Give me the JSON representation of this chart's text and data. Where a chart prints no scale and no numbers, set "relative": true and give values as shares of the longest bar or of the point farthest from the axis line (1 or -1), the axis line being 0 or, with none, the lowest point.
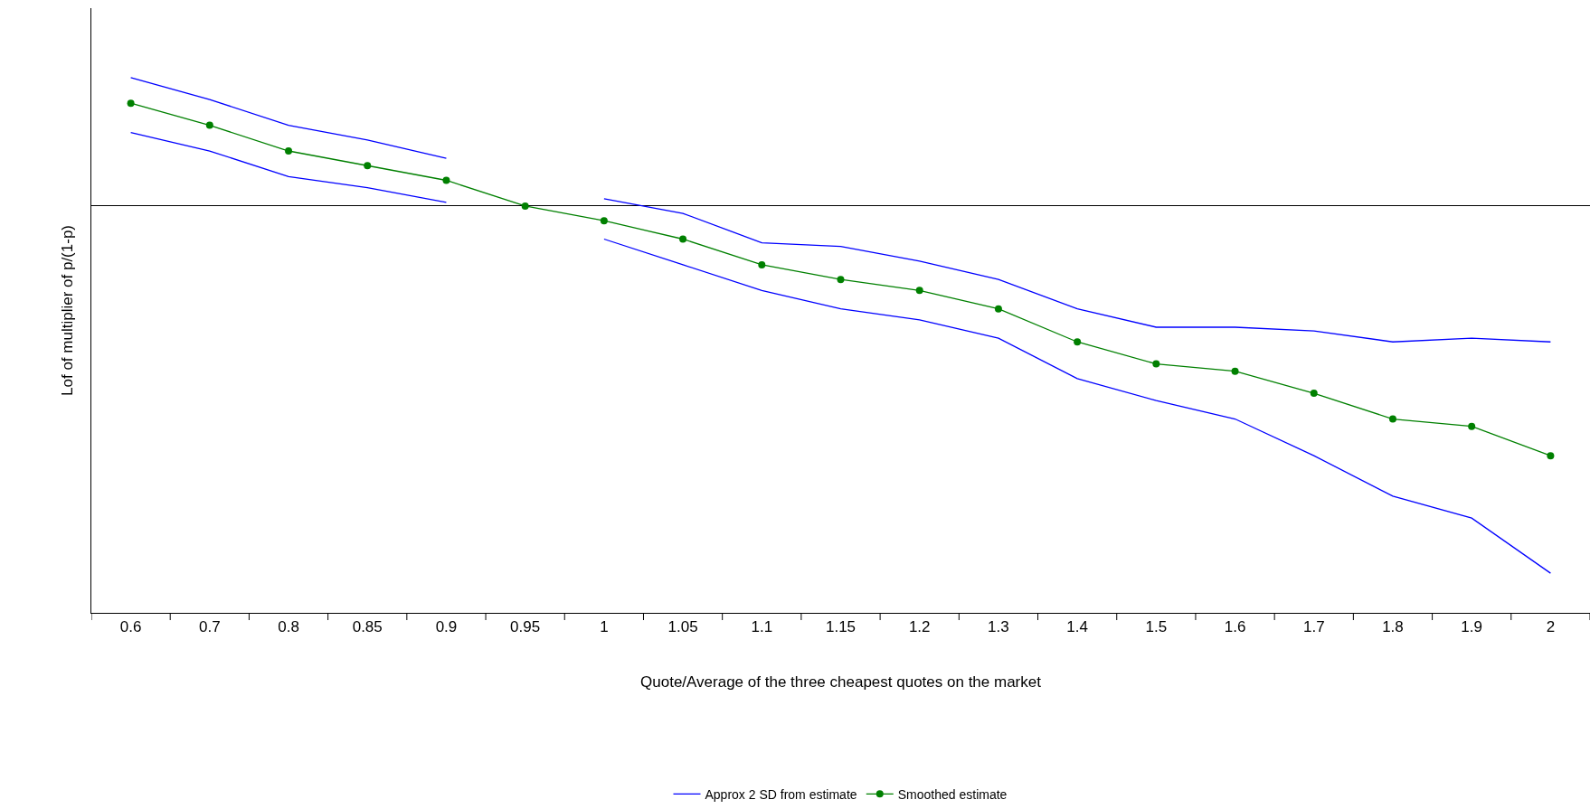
{
  "chart_data": {
    "type": "line",
    "relative": true,
    "xlabel": "Quote/Average of the three cheapest quotes on the market",
    "ylabel": "Lof of multiplier of p/(1-p)",
    "categories": [
      "0.6",
      "0.7",
      "0.8",
      "0.85",
      "0.9",
      "0.95",
      "1",
      "1.05",
      "1.1",
      "1.15",
      "1.2",
      "1.3",
      "1.4",
      "1.5",
      "1.6",
      "1.7",
      "1.8",
      "1.9",
      "2"
    ],
    "series": [
      {
        "name": "Approx 2 SD from estimate",
        "color": "#0000ff",
        "marker": "none",
        "values": [
          0.35,
          0.29,
          0.22,
          0.18,
          0.13,
          null,
          0.02,
          -0.02,
          -0.1,
          -0.11,
          -0.15,
          -0.2,
          -0.28,
          -0.33,
          -0.33,
          -0.34,
          -0.37,
          -0.36,
          -0.37
        ]
      },
      {
        "color": "#0000ff",
        "marker": "none",
        "values": [
          0.2,
          0.15,
          0.08,
          0.05,
          0.01,
          null,
          -0.09,
          -0.16,
          -0.23,
          -0.28,
          -0.31,
          -0.36,
          -0.47,
          -0.53,
          -0.58,
          -0.68,
          -0.79,
          -0.85,
          -1
        ]
      },
      {
        "name": "Smoothed estimate",
        "color": "#008000",
        "marker": "circle",
        "values": [
          0.28,
          0.22,
          0.15,
          0.11,
          0.07,
          0,
          -0.04,
          -0.09,
          -0.16,
          -0.2,
          -0.23,
          -0.28,
          -0.37,
          -0.43,
          -0.45,
          -0.51,
          -0.58,
          -0.6,
          -0.68
        ]
      }
    ],
    "legend": "bottom"
  }
}
